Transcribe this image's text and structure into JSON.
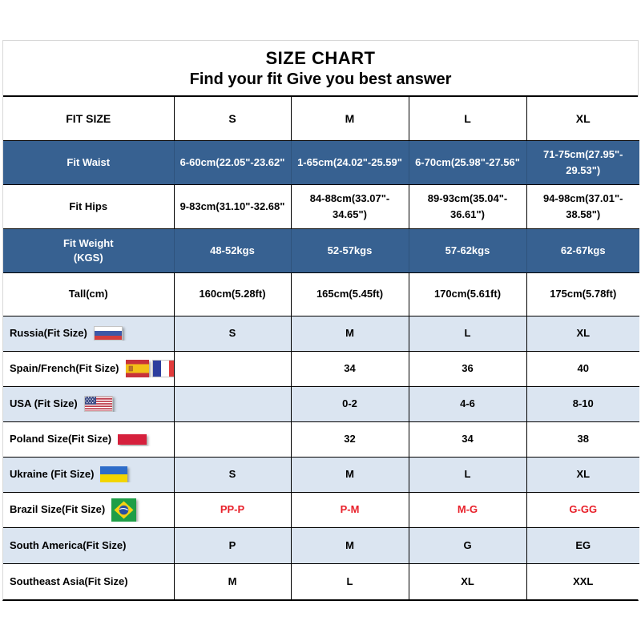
{
  "chart_data": {
    "type": "table",
    "title": "SIZE CHART",
    "subtitle": "Find your fit Give you best answer",
    "columns": [
      "FIT SIZE",
      "S",
      "M",
      "L",
      "XL"
    ],
    "rows": [
      {
        "label": "Fit Waist",
        "style": "dark",
        "values": [
          "6-60cm(22.05\"-23.62\"",
          "1-65cm(24.02\"-25.59\"",
          "6-70cm(25.98\"-27.56\"",
          "71-75cm(27.95\"- 29.53\")"
        ]
      },
      {
        "label": "Fit Hips",
        "style": "white",
        "values": [
          "9-83cm(31.10\"-32.68\"",
          "84-88cm(33.07\"- 34.65\")",
          "89-93cm(35.04\"- 36.61\")",
          "94-98cm(37.01\"- 38.58\")"
        ]
      },
      {
        "label": "Fit Weight",
        "label2": "(KGS)",
        "style": "dark",
        "values": [
          "48-52kgs",
          "52-57kgs",
          "57-62kgs",
          "62-67kgs"
        ]
      },
      {
        "label": "Tall(cm)",
        "style": "white",
        "values": [
          "160cm(5.28ft)",
          "165cm(5.45ft)",
          "170cm(5.61ft)",
          "175cm(5.78ft)"
        ]
      },
      {
        "label": "Russia(Fit Size)",
        "style": "light",
        "flags": [
          "russia"
        ],
        "values": [
          "S",
          "M",
          "L",
          "XL"
        ]
      },
      {
        "label": "Spain/French(Fit Size)",
        "style": "white",
        "flags": [
          "spain",
          "france"
        ],
        "values": [
          "",
          "34",
          "36",
          "40"
        ]
      },
      {
        "label": "USA (Fit Size)",
        "style": "light",
        "flags": [
          "usa"
        ],
        "values": [
          "",
          "0-2",
          "4-6",
          "8-10"
        ]
      },
      {
        "label": "Poland Size(Fit Size)",
        "style": "white",
        "flags": [
          "poland"
        ],
        "values": [
          "",
          "32",
          "34",
          "38"
        ]
      },
      {
        "label": "Ukraine (Fit Size)",
        "style": "light",
        "flags": [
          "ukraine"
        ],
        "values": [
          "S",
          "M",
          "L",
          "XL"
        ]
      },
      {
        "label": "Brazil Size(Fit Size)",
        "style": "white",
        "flags": [
          "brazil"
        ],
        "value_color": "red",
        "values": [
          "PP-P",
          "P-M",
          "M-G",
          "G-GG"
        ]
      },
      {
        "label": "South America(Fit Size)",
        "style": "light",
        "values": [
          "P",
          "M",
          "G",
          "EG"
        ]
      },
      {
        "label": "Southeast Asia(Fit Size)",
        "style": "white",
        "values": [
          "M",
          "L",
          "XL",
          "XXL"
        ]
      }
    ],
    "colors": {
      "dark_row_bg": "#376191",
      "light_row_bg": "#dbe5f1",
      "brazil_value_red": "#e8202a",
      "poland_flag_red": "#d6203c"
    },
    "layout_hints": {
      "grid": "on",
      "header_row": "FIT SIZE | S | M | L | XL"
    }
  }
}
